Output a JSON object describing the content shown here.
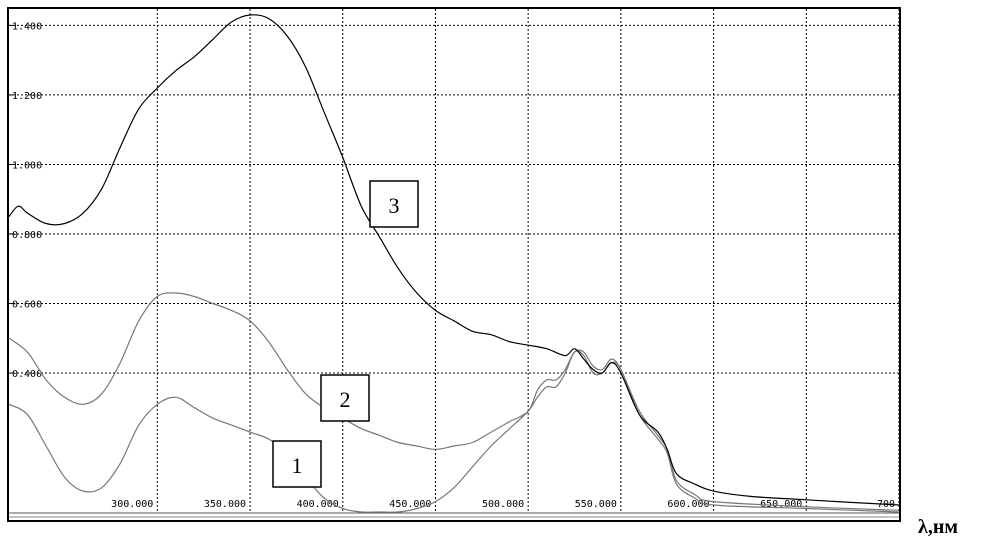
{
  "chart_data": {
    "type": "line",
    "xlabel": "λ,нм",
    "ylabel": "",
    "xlim": [
      220,
      700
    ],
    "ylim": [
      0.0,
      1.43
    ],
    "grid": true,
    "x_ticks": [
      {
        "value": 300,
        "label": "300.000"
      },
      {
        "value": 350,
        "label": "350.000"
      },
      {
        "value": 400,
        "label": "400.000"
      },
      {
        "value": 450,
        "label": "450.000"
      },
      {
        "value": 500,
        "label": "500.000"
      },
      {
        "value": 550,
        "label": "550.000"
      },
      {
        "value": 600,
        "label": "600.000"
      },
      {
        "value": 650,
        "label": "650.000"
      },
      {
        "value": 700,
        "label": "700"
      }
    ],
    "y_ticks": [
      {
        "value": 0.4,
        "label": "0.400"
      },
      {
        "value": 0.6,
        "label": "0.600"
      },
      {
        "value": 0.8,
        "label": "0.800"
      },
      {
        "value": 1.0,
        "label": "1.000"
      },
      {
        "value": 1.2,
        "label": "1.200"
      },
      {
        "value": 1.4,
        "label": "1.400"
      }
    ],
    "series": [
      {
        "name": "1",
        "color": "#777777",
        "points": [
          [
            220,
            0.31
          ],
          [
            230,
            0.28
          ],
          [
            240,
            0.19
          ],
          [
            250,
            0.1
          ],
          [
            260,
            0.06
          ],
          [
            270,
            0.07
          ],
          [
            280,
            0.14
          ],
          [
            290,
            0.25
          ],
          [
            300,
            0.31
          ],
          [
            310,
            0.33
          ],
          [
            320,
            0.3
          ],
          [
            330,
            0.27
          ],
          [
            340,
            0.25
          ],
          [
            350,
            0.23
          ],
          [
            360,
            0.21
          ],
          [
            370,
            0.17
          ],
          [
            380,
            0.1
          ],
          [
            390,
            0.04
          ],
          [
            400,
            0.01
          ],
          [
            410,
            0.0
          ],
          [
            420,
            0.0
          ],
          [
            430,
            0.0
          ],
          [
            440,
            0.01
          ],
          [
            450,
            0.03
          ],
          [
            460,
            0.07
          ],
          [
            470,
            0.13
          ],
          [
            480,
            0.19
          ],
          [
            490,
            0.24
          ],
          [
            500,
            0.29
          ],
          [
            505,
            0.33
          ],
          [
            510,
            0.36
          ],
          [
            515,
            0.36
          ],
          [
            520,
            0.4
          ],
          [
            525,
            0.46
          ],
          [
            530,
            0.45
          ],
          [
            535,
            0.4
          ],
          [
            540,
            0.4
          ],
          [
            545,
            0.43
          ],
          [
            550,
            0.41
          ],
          [
            560,
            0.28
          ],
          [
            570,
            0.21
          ],
          [
            575,
            0.17
          ],
          [
            580,
            0.08
          ],
          [
            590,
            0.04
          ],
          [
            600,
            0.02
          ],
          [
            650,
            0.01
          ],
          [
            700,
            0.0
          ]
        ]
      },
      {
        "name": "2",
        "color": "#777777",
        "points": [
          [
            220,
            0.5
          ],
          [
            230,
            0.46
          ],
          [
            240,
            0.38
          ],
          [
            250,
            0.33
          ],
          [
            260,
            0.31
          ],
          [
            270,
            0.34
          ],
          [
            280,
            0.43
          ],
          [
            290,
            0.55
          ],
          [
            300,
            0.62
          ],
          [
            310,
            0.63
          ],
          [
            320,
            0.62
          ],
          [
            330,
            0.6
          ],
          [
            340,
            0.58
          ],
          [
            350,
            0.55
          ],
          [
            360,
            0.49
          ],
          [
            370,
            0.41
          ],
          [
            380,
            0.34
          ],
          [
            390,
            0.3
          ],
          [
            400,
            0.27
          ],
          [
            410,
            0.24
          ],
          [
            420,
            0.22
          ],
          [
            430,
            0.2
          ],
          [
            440,
            0.19
          ],
          [
            450,
            0.18
          ],
          [
            460,
            0.19
          ],
          [
            470,
            0.2
          ],
          [
            480,
            0.23
          ],
          [
            490,
            0.26
          ],
          [
            500,
            0.29
          ],
          [
            505,
            0.35
          ],
          [
            510,
            0.38
          ],
          [
            515,
            0.38
          ],
          [
            520,
            0.41
          ],
          [
            525,
            0.46
          ],
          [
            530,
            0.46
          ],
          [
            535,
            0.42
          ],
          [
            540,
            0.41
          ],
          [
            545,
            0.44
          ],
          [
            550,
            0.41
          ],
          [
            560,
            0.29
          ],
          [
            570,
            0.22
          ],
          [
            575,
            0.18
          ],
          [
            580,
            0.09
          ],
          [
            590,
            0.05
          ],
          [
            600,
            0.03
          ],
          [
            650,
            0.015
          ],
          [
            700,
            0.005
          ]
        ]
      },
      {
        "name": "3",
        "color": "#000000",
        "points": [
          [
            220,
            0.85
          ],
          [
            225,
            0.88
          ],
          [
            230,
            0.86
          ],
          [
            240,
            0.83
          ],
          [
            250,
            0.83
          ],
          [
            260,
            0.86
          ],
          [
            270,
            0.93
          ],
          [
            280,
            1.05
          ],
          [
            290,
            1.16
          ],
          [
            300,
            1.22
          ],
          [
            310,
            1.27
          ],
          [
            320,
            1.31
          ],
          [
            330,
            1.36
          ],
          [
            340,
            1.41
          ],
          [
            350,
            1.43
          ],
          [
            360,
            1.42
          ],
          [
            370,
            1.37
          ],
          [
            380,
            1.28
          ],
          [
            390,
            1.15
          ],
          [
            400,
            1.02
          ],
          [
            410,
            0.88
          ],
          [
            420,
            0.79
          ],
          [
            430,
            0.7
          ],
          [
            440,
            0.63
          ],
          [
            450,
            0.58
          ],
          [
            460,
            0.55
          ],
          [
            470,
            0.52
          ],
          [
            480,
            0.51
          ],
          [
            490,
            0.49
          ],
          [
            500,
            0.48
          ],
          [
            510,
            0.47
          ],
          [
            520,
            0.45
          ],
          [
            525,
            0.47
          ],
          [
            530,
            0.44
          ],
          [
            535,
            0.41
          ],
          [
            540,
            0.4
          ],
          [
            545,
            0.43
          ],
          [
            550,
            0.4
          ],
          [
            560,
            0.28
          ],
          [
            570,
            0.23
          ],
          [
            575,
            0.18
          ],
          [
            580,
            0.11
          ],
          [
            590,
            0.08
          ],
          [
            600,
            0.06
          ],
          [
            620,
            0.045
          ],
          [
            650,
            0.035
          ],
          [
            700,
            0.02
          ]
        ]
      }
    ]
  }
}
